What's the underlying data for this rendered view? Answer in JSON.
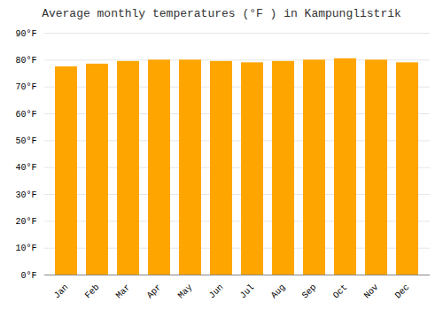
{
  "chart_data": {
    "type": "bar",
    "title": "Average monthly temperatures (°F ) in Kampunglistrik",
    "categories": [
      "Jan",
      "Feb",
      "Mar",
      "Apr",
      "May",
      "Jun",
      "Jul",
      "Aug",
      "Sep",
      "Oct",
      "Nov",
      "Dec"
    ],
    "values": [
      77.5,
      78.5,
      79.5,
      80.0,
      80.0,
      79.5,
      79.0,
      79.5,
      80.0,
      80.5,
      80.0,
      79.0
    ],
    "color": "#FFA500",
    "ylim": [
      0,
      90
    ],
    "yticks": [
      {
        "value": 0,
        "label": "0°F"
      },
      {
        "value": 10,
        "label": "10°F"
      },
      {
        "value": 20,
        "label": "20°F"
      },
      {
        "value": 30,
        "label": "30°F"
      },
      {
        "value": 40,
        "label": "40°F"
      },
      {
        "value": 50,
        "label": "50°F"
      },
      {
        "value": 60,
        "label": "60°F"
      },
      {
        "value": 70,
        "label": "70°F"
      },
      {
        "value": 80,
        "label": "80°F"
      },
      {
        "value": 90,
        "label": "90°F"
      }
    ],
    "grid": true
  }
}
